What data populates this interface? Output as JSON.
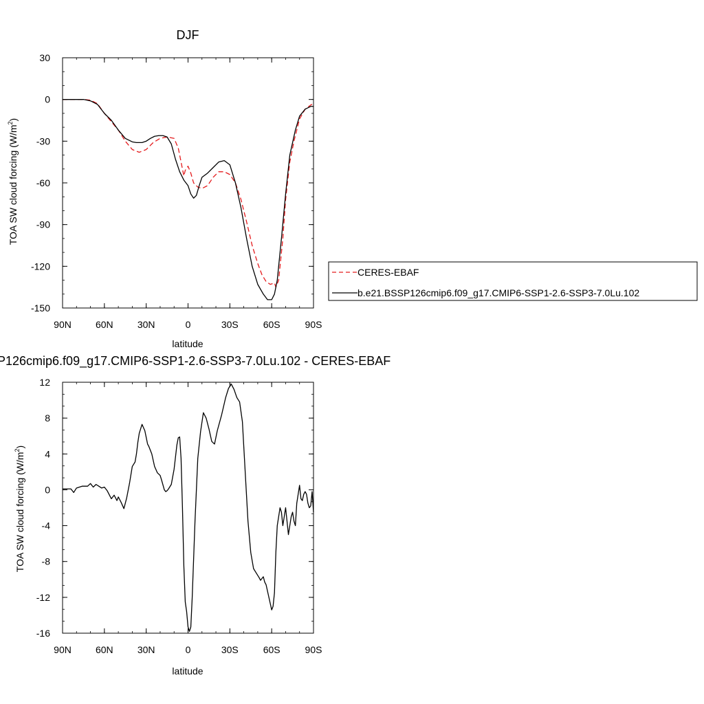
{
  "chart_data": [
    {
      "type": "line",
      "title": "DJF",
      "xlabel": "latitude",
      "ylabel_main": "TOA SW cloud forcing (W/m",
      "ylabel_sup": "2",
      "ylabel_close": ")",
      "xlim": [
        90,
        -90
      ],
      "ylim": [
        -150,
        30
      ],
      "x_ticks": [
        90,
        60,
        30,
        0,
        -30,
        -60,
        -90
      ],
      "x_tick_labels": [
        "90N",
        "60N",
        "30N",
        "0",
        "30S",
        "60S",
        "90S"
      ],
      "y_ticks": [
        30,
        0,
        -30,
        -60,
        -90,
        -120,
        -150
      ],
      "y_tick_labels": [
        "30",
        "0",
        "-30",
        "-60",
        "-90",
        "-120",
        "-150"
      ],
      "legend_placement": "right",
      "series": [
        {
          "name": "CERES-EBAF",
          "color": "#e41a1c",
          "dash": "dashed",
          "x": [
            90,
            85,
            80,
            75,
            70,
            65,
            60,
            55,
            50,
            45,
            40,
            35,
            30,
            25,
            20,
            15,
            10,
            7,
            5,
            3,
            2,
            0,
            -2,
            -4,
            -7,
            -10,
            -14,
            -18,
            -22,
            -26,
            -30,
            -34,
            -38,
            -42,
            -46,
            -50,
            -53,
            -56,
            -59,
            -62,
            -63,
            -65,
            -68,
            -70,
            -73,
            -76,
            -80,
            -84,
            -88,
            -90
          ],
          "y": [
            0,
            0,
            0,
            0,
            -0.5,
            -3,
            -10,
            -16,
            -22,
            -30,
            -36,
            -38,
            -36,
            -31,
            -28,
            -27,
            -28,
            -35,
            -45,
            -55,
            -51,
            -48,
            -53,
            -60,
            -63,
            -64,
            -62,
            -56,
            -52,
            -52,
            -54,
            -60,
            -72,
            -88,
            -105,
            -118,
            -126,
            -131,
            -133,
            -132,
            -135,
            -130,
            -100,
            -72,
            -45,
            -30,
            -14,
            -7,
            -4,
            -3
          ]
        },
        {
          "name": "b.e21.BSSP126cmip6.f09_g17.CMIP6-SSP1-2.6-SSP3-7.0Lu.102",
          "color": "#000000",
          "dash": "solid",
          "x": [
            90,
            85,
            80,
            75,
            70,
            65,
            60,
            55,
            50,
            45,
            40,
            37,
            33,
            30,
            27,
            24,
            21,
            18,
            15,
            12,
            9,
            6,
            3,
            0,
            -2,
            -4,
            -6,
            -8,
            -10,
            -14,
            -18,
            -22,
            -26,
            -30,
            -34,
            -38,
            -42,
            -46,
            -50,
            -54,
            -57,
            -60,
            -62,
            -64,
            -67,
            -70,
            -73,
            -77,
            -80,
            -84,
            -88,
            -90
          ],
          "y": [
            0,
            0,
            0,
            0,
            -1,
            -3.5,
            -10,
            -15,
            -22,
            -28,
            -30.5,
            -31,
            -31,
            -30,
            -28,
            -26.5,
            -26,
            -26,
            -27,
            -32,
            -43,
            -52,
            -58,
            -62,
            -68,
            -71,
            -69,
            -62,
            -56,
            -53,
            -49,
            -45,
            -44,
            -47,
            -60,
            -78,
            -100,
            -120,
            -133,
            -140,
            -144,
            -144,
            -140,
            -130,
            -100,
            -68,
            -40,
            -22,
            -12,
            -7,
            -5,
            -5
          ]
        }
      ]
    },
    {
      "type": "line",
      "title": "P126cmip6.f09_g17.CMIP6-SSP1-2.6-SSP3-7.0Lu.102 - CERES-EBAF",
      "xlabel": "latitude",
      "ylabel_main": "TOA SW cloud forcing (W/m",
      "ylabel_sup": "2",
      "ylabel_close": ")",
      "xlim": [
        90,
        -90
      ],
      "ylim": [
        -16,
        12
      ],
      "x_ticks": [
        90,
        60,
        30,
        0,
        -30,
        -60,
        -90
      ],
      "x_tick_labels": [
        "90N",
        "60N",
        "30N",
        "0",
        "30S",
        "60S",
        "90S"
      ],
      "y_ticks": [
        12,
        8,
        4,
        0,
        -4,
        -8,
        -12,
        -16
      ],
      "y_tick_labels": [
        "12",
        "8",
        "4",
        "0",
        "-4",
        "-8",
        "-12",
        "-16"
      ],
      "series": [
        {
          "color": "#000000",
          "dash": "solid",
          "x": [
            90,
            84,
            82,
            80,
            76,
            72,
            70,
            68,
            66,
            64,
            62,
            60,
            58,
            56,
            55,
            53,
            51,
            50,
            48,
            46,
            44,
            42,
            40,
            38,
            37,
            36,
            35,
            33,
            31,
            29,
            28,
            26,
            24,
            22,
            20,
            19,
            17,
            16,
            15,
            14,
            12,
            10,
            8,
            7,
            6,
            5,
            4,
            3,
            2,
            1,
            0,
            -1,
            -2,
            -3,
            -5,
            -7,
            -9,
            -11,
            -13,
            -15,
            -17,
            -19,
            -21,
            -24,
            -27,
            -29,
            -31,
            -33,
            -35,
            -37,
            -39,
            -41,
            -43,
            -45,
            -47,
            -49,
            -51,
            -52,
            -54,
            -55,
            -56,
            -58,
            -60,
            -61,
            -62,
            -63,
            -64,
            -65,
            -66,
            -67,
            -68,
            -69,
            -70,
            -71,
            -72,
            -73,
            -74,
            -75,
            -76,
            -77,
            -78,
            -79,
            -80,
            -81,
            -82,
            -83,
            -84,
            -85,
            -86,
            -87,
            -88,
            -89,
            -90
          ],
          "y": [
            0.1,
            0.1,
            -0.3,
            0.2,
            0.4,
            0.4,
            0.7,
            0.3,
            0.6,
            0.4,
            0.2,
            0.3,
            -0.1,
            -0.7,
            -1.0,
            -0.6,
            -1.2,
            -0.8,
            -1.4,
            -2.1,
            -0.9,
            0.7,
            2.6,
            3.1,
            4.0,
            5.3,
            6.3,
            7.3,
            6.6,
            5.1,
            4.8,
            4.0,
            2.6,
            1.9,
            1.6,
            1.1,
            0.0,
            -0.2,
            -0.1,
            0.1,
            0.6,
            2.3,
            5.0,
            5.8,
            5.9,
            3.5,
            -2.0,
            -8.5,
            -12.5,
            -13.6,
            -15.3,
            -15.8,
            -15.3,
            -12.0,
            -3.5,
            3.5,
            6.5,
            8.6,
            8.0,
            6.8,
            5.4,
            5.1,
            6.6,
            8.3,
            10.3,
            11.3,
            11.8,
            11.2,
            10.3,
            9.8,
            7.6,
            2.0,
            -3.5,
            -7.0,
            -8.8,
            -9.3,
            -9.8,
            -10.1,
            -9.7,
            -10.3,
            -10.6,
            -12.0,
            -13.4,
            -13.0,
            -11.5,
            -7.0,
            -4.0,
            -3.0,
            -2.0,
            -2.5,
            -4.0,
            -3.0,
            -2.0,
            -3.5,
            -5.0,
            -4.0,
            -3.0,
            -2.5,
            -3.5,
            -4.0,
            -1.5,
            -0.5,
            0.5,
            -1.0,
            -1.2,
            -0.5,
            -0.2,
            -0.5,
            -1.5,
            -2.0,
            -1.8,
            -0.2,
            -2.5
          ]
        }
      ]
    }
  ]
}
